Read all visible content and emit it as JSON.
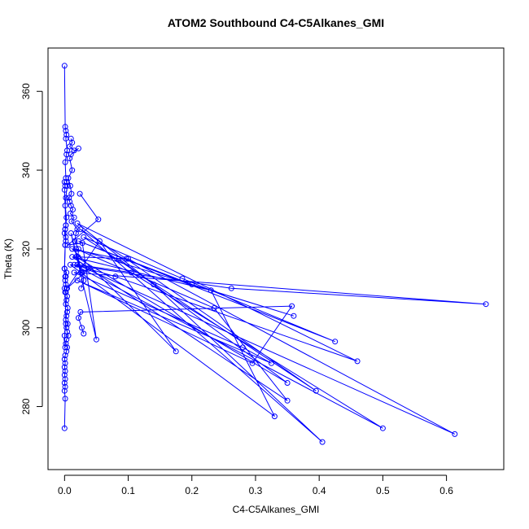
{
  "chart_data": {
    "type": "line",
    "title": "ATOM2 Southbound C4-C5Alkanes_GMI",
    "xlabel": "C4-C5Alkanes_GMI",
    "ylabel": "Theta (K)",
    "xlim": [
      -0.026,
      0.69
    ],
    "ylim": [
      264,
      371
    ],
    "xticks": [
      0.0,
      0.1,
      0.2,
      0.3,
      0.4,
      0.5,
      0.6
    ],
    "xtick_labels": [
      "0.0",
      "0.1",
      "0.2",
      "0.3",
      "0.4",
      "0.5",
      "0.6"
    ],
    "yticks": [
      280,
      300,
      320,
      340,
      360
    ],
    "ytick_labels": [
      "280",
      "300",
      "320",
      "340",
      "360"
    ],
    "grid": false,
    "line_color": "#0000ff",
    "marker": "open-circle",
    "series": [
      {
        "x": [
          0.0,
          0.001,
          0.002,
          0.003,
          0.002,
          0.004,
          0.003,
          0.001,
          0.002,
          0.003,
          0.004,
          0.002,
          0.001,
          0.003,
          0.002,
          0.001,
          0.002,
          0.001,
          0.0,
          0.002,
          0.001,
          0.003,
          0.002,
          0.004,
          0.003,
          0.002,
          0.005,
          0.004,
          0.003,
          0.002,
          0.005,
          0.003,
          0.004,
          0.006,
          0.003,
          0.002,
          0.004,
          0.003,
          0.001,
          0.0,
          0.001,
          0.0,
          0.001,
          0.0,
          0.001,
          0.0,
          0.001,
          0.0,
          0.001,
          0.0
        ],
        "y": [
          366.5,
          351,
          350,
          349,
          348,
          345,
          344,
          342,
          338,
          337,
          336,
          333,
          331,
          328,
          326,
          325,
          323,
          321,
          315,
          313,
          312,
          310,
          309,
          308,
          307,
          306,
          305,
          304,
          303,
          302,
          301,
          300,
          299,
          298,
          297,
          296,
          295,
          294,
          293,
          292,
          291,
          290,
          289,
          288,
          287,
          286,
          285,
          284,
          282,
          274.5
        ]
      },
      {
        "x": [
          0.01,
          0.012,
          0.008,
          0.015,
          0.022,
          0.01,
          0.008,
          0.012,
          0.006,
          0.009,
          0.011,
          0.007,
          0.008,
          0.01,
          0.013,
          0.009,
          0.015,
          0.011,
          0.02,
          0.018,
          0.016,
          0.022,
          0.021,
          0.024,
          0.028,
          0.03,
          0.026
        ],
        "y": [
          348,
          347,
          346,
          345,
          345.5,
          344,
          343,
          340,
          338,
          336,
          334,
          333,
          332,
          331,
          330,
          329,
          328,
          327,
          325,
          324,
          322,
          320,
          318,
          316,
          314,
          312,
          310
        ]
      },
      {
        "x": [
          0.024,
          0.053,
          0.005,
          0.028,
          0.05,
          0.01,
          0.026,
          0.038,
          0.004,
          0.055,
          0.175,
          0.012,
          0.085,
          0.35,
          0.018,
          0.1,
          0.613,
          0.02,
          0.105,
          0.5,
          0.015,
          0.08,
          0.46,
          0.02,
          0.14,
          0.405,
          0.025,
          0.097,
          0.395,
          0.03,
          0.185,
          0.425,
          0.022,
          0.2,
          0.36,
          0.018,
          0.235,
          0.35,
          0.012,
          0.23,
          0.33,
          0.009,
          0.262,
          0.662,
          0.015,
          0.28,
          0.325,
          0.02,
          0.295,
          0.357,
          0.025,
          0.022,
          0.027,
          0.03
        ],
        "y": [
          334,
          327.5,
          321,
          321.5,
          297,
          324,
          314,
          315,
          310,
          322,
          294,
          320,
          317.5,
          286,
          318,
          317.5,
          273,
          316,
          314,
          274.5,
          316,
          313,
          291.5,
          326.5,
          311,
          271,
          325,
          317.5,
          284,
          323,
          312.5,
          296.5,
          322,
          311,
          303,
          320,
          305,
          281.5,
          318,
          309.5,
          277.5,
          316,
          310,
          306,
          314,
          295,
          291,
          312,
          291,
          305.5,
          304,
          302.5,
          300,
          298.5
        ]
      },
      {
        "x": [
          0.0,
          0.001,
          0.0,
          0.002,
          0.001,
          0.0,
          0.002,
          0.001,
          0.0,
          0.003,
          0.001,
          0.002,
          0.0,
          0.001,
          0.002,
          0.0,
          0.001
        ],
        "y": [
          337,
          336,
          335,
          326,
          325,
          324,
          322,
          321,
          315,
          314,
          313,
          311,
          310,
          309,
          301,
          298,
          295
        ]
      }
    ]
  }
}
